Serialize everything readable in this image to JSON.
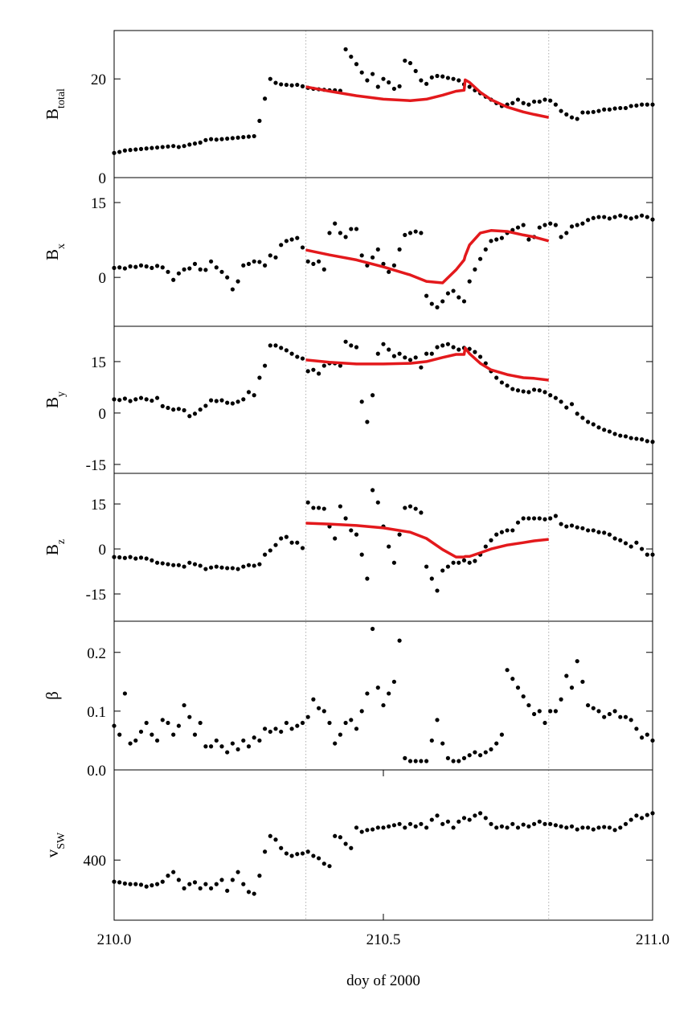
{
  "chart_data": {
    "type": "scatter",
    "xlabel": "doy of 2000",
    "xlim": [
      210.0,
      211.0
    ],
    "xticks": [
      {
        "value": 210.0,
        "label": "210.0"
      },
      210.5,
      {
        "value": 211.0,
        "label": "211.0"
      }
    ],
    "vlines": [
      210.356,
      210.807
    ],
    "x": [
      210.0,
      210.01,
      210.02,
      210.03,
      210.04,
      210.05,
      210.06,
      210.07,
      210.08,
      210.09,
      210.1,
      210.11,
      210.12,
      210.13,
      210.14,
      210.15,
      210.16,
      210.17,
      210.18,
      210.19,
      210.2,
      210.21,
      210.22,
      210.23,
      210.24,
      210.25,
      210.26,
      210.27,
      210.28,
      210.29,
      210.3,
      210.31,
      210.32,
      210.33,
      210.34,
      210.35,
      210.36,
      210.37,
      210.38,
      210.39,
      210.4,
      210.41,
      210.42,
      210.43,
      210.44,
      210.45,
      210.46,
      210.47,
      210.48,
      210.49,
      210.5,
      210.51,
      210.52,
      210.53,
      210.54,
      210.55,
      210.56,
      210.57,
      210.58,
      210.59,
      210.6,
      210.61,
      210.62,
      210.63,
      210.64,
      210.65,
      210.66,
      210.67,
      210.68,
      210.69,
      210.7,
      210.71,
      210.72,
      210.73,
      210.74,
      210.75,
      210.76,
      210.77,
      210.78,
      210.79,
      210.8,
      210.81,
      210.82,
      210.83,
      210.84,
      210.85,
      210.86,
      210.87,
      210.88,
      210.89,
      210.9,
      210.91,
      210.92,
      210.93,
      210.94,
      210.95,
      210.96,
      210.97,
      210.98,
      210.99,
      211.0
    ],
    "panels": [
      {
        "ylabel": "B",
        "ylabel_sub": "total",
        "ylim": [
          0,
          29.8
        ],
        "yticks": [
          0,
          20
        ],
        "y_inverted": false,
        "series": [
          {
            "mode": "markers",
            "color": "#000000",
            "values": [
              5,
              5.2,
              5.5,
              5.6,
              5.7,
              5.8,
              5.9,
              6,
              6.1,
              6.2,
              6.3,
              6.4,
              6.2,
              6.4,
              6.7,
              6.9,
              7.1,
              7.6,
              7.8,
              7.7,
              7.8,
              7.9,
              8,
              8.1,
              8.2,
              8.3,
              8.4,
              11.5,
              16,
              20,
              19.2,
              18.9,
              18.8,
              18.7,
              18.8,
              18.5,
              18.2,
              18,
              17.9,
              17.8,
              17.7,
              17.7,
              17.6,
              26,
              24.5,
              23,
              21.3,
              19.7,
              21,
              18.4,
              20,
              19.3,
              18,
              18.5,
              23.7,
              23.2,
              21.6,
              19.7,
              19,
              20.3,
              20.6,
              20.5,
              20.2,
              20,
              19.7,
              18.9,
              18.4,
              17.7,
              17.1,
              16.4,
              15.8,
              15.1,
              14.5,
              14.8,
              15.1,
              15.8,
              15.1,
              14.8,
              15.4,
              15.4,
              15.8,
              15.6,
              14.8,
              13.5,
              12.8,
              12.2,
              11.9,
              13.2,
              13.2,
              13.3,
              13.5,
              13.8,
              13.8,
              14,
              14.1,
              14.1,
              14.5,
              14.6,
              14.8,
              14.8,
              14.8
            ]
          },
          {
            "mode": "lines",
            "color": "#e3191c",
            "x": [
              210.356,
              210.4,
              210.45,
              210.5,
              210.55,
              210.58,
              210.61,
              210.635,
              210.65,
              210.652,
              210.66,
              210.68,
              210.7,
              210.73,
              210.76,
              210.78,
              210.807
            ],
            "values": [
              18.4,
              17.5,
              16.6,
              15.9,
              15.6,
              15.9,
              16.7,
              17.5,
              17.7,
              19.8,
              19.3,
              17.3,
              15.8,
              14.3,
              13.3,
              12.8,
              12.2
            ]
          }
        ]
      },
      {
        "ylabel": "B",
        "ylabel_sub": "x",
        "ylim": [
          -9.8,
          20
        ],
        "yticks": [
          0,
          15
        ],
        "y_inverted": false,
        "series": [
          {
            "mode": "markers",
            "color": "#000000",
            "values": [
              1.9,
              2,
              1.8,
              2.2,
              2.1,
              2.4,
              2.2,
              1.9,
              2.3,
              2,
              1.1,
              -0.5,
              0.8,
              1.6,
              1.8,
              2.7,
              1.6,
              1.5,
              3.2,
              2,
              1.1,
              0,
              -2.4,
              -0.8,
              2.4,
              2.7,
              3.2,
              3.1,
              2.4,
              4.4,
              4,
              6.5,
              7.3,
              7.6,
              7.9,
              6,
              3.2,
              2.7,
              3.2,
              1.6,
              8.9,
              10.8,
              8.9,
              8.1,
              9.7,
              9.7,
              4.4,
              2.4,
              4,
              5.6,
              2.7,
              1.1,
              2.4,
              5.6,
              8.5,
              8.9,
              9.2,
              8.9,
              -3.7,
              -5.3,
              -6,
              -4.8,
              -3.2,
              -2.7,
              -4,
              -4.8,
              -0.8,
              1.6,
              3.7,
              5.6,
              7.3,
              7.6,
              7.9,
              8.9,
              9.5,
              10,
              10.5,
              7.6,
              8.1,
              10,
              10.5,
              10.8,
              10.5,
              8.1,
              8.9,
              10.2,
              10.5,
              10.8,
              11.5,
              11.9,
              12.1,
              12.1,
              11.8,
              12.1,
              12.4,
              12.1,
              11.8,
              12.1,
              12.4,
              12.1,
              11.6
            ]
          },
          {
            "mode": "lines",
            "color": "#e3191c",
            "x": [
              210.356,
              210.4,
              210.45,
              210.5,
              210.55,
              210.58,
              210.61,
              210.635,
              210.65,
              210.652,
              210.66,
              210.68,
              210.7,
              210.73,
              210.76,
              210.78,
              210.807
            ],
            "values": [
              5.5,
              4.5,
              3.5,
              2.1,
              0.5,
              -0.8,
              -1.1,
              1.5,
              3.5,
              4.3,
              6.5,
              8.9,
              9.4,
              9.2,
              8.5,
              8.1,
              7.3
            ]
          }
        ]
      },
      {
        "ylabel": "B",
        "ylabel_sub": "y",
        "ylim": [
          -17.6,
          25.3
        ],
        "yticks": [
          -15,
          0,
          15
        ],
        "y_inverted": false,
        "series": [
          {
            "mode": "markers",
            "color": "#000000",
            "values": [
              4,
              3.8,
              4.2,
              3.5,
              4,
              4.4,
              4,
              3.6,
              4.4,
              2,
              1.5,
              1,
              1.2,
              0.8,
              -0.9,
              -0.2,
              1,
              2.1,
              3.7,
              3.5,
              3.7,
              3,
              2.8,
              3.3,
              4,
              6.1,
              5.2,
              10.3,
              13.8,
              19.7,
              19.7,
              19,
              18.3,
              17.3,
              16.4,
              15.9,
              12.2,
              12.6,
              11.5,
              13.8,
              14.5,
              14.5,
              13.8,
              20.8,
              19.7,
              19.2,
              3.3,
              -2.6,
              5.2,
              17.3,
              20.1,
              18.5,
              16.6,
              17.3,
              16.2,
              15.5,
              16.2,
              13.3,
              17.3,
              17.3,
              19.2,
              19.7,
              20.1,
              19.2,
              18.5,
              19,
              18.7,
              17.8,
              16.4,
              14.5,
              12.2,
              10.3,
              8.9,
              8,
              7,
              6.6,
              6.3,
              6.1,
              6.8,
              6.6,
              6.1,
              5.2,
              4.4,
              3.3,
              1.6,
              2.6,
              -0.2,
              -1.4,
              -2.6,
              -3.3,
              -4.2,
              -4.9,
              -5.4,
              -6.1,
              -6.6,
              -6.8,
              -7.3,
              -7.5,
              -7.7,
              -8.2,
              -8.4
            ]
          },
          {
            "mode": "lines",
            "color": "#e3191c",
            "x": [
              210.356,
              210.4,
              210.45,
              210.5,
              210.55,
              210.58,
              210.61,
              210.635,
              210.65,
              210.652,
              210.66,
              210.68,
              210.7,
              210.73,
              210.76,
              210.78,
              210.807
            ],
            "values": [
              15.5,
              14.8,
              14.3,
              14.3,
              14.5,
              15,
              16.2,
              17.1,
              17.1,
              19,
              17.3,
              14.5,
              12.6,
              11.2,
              10.3,
              10.1,
              9.6
            ]
          }
        ]
      },
      {
        "ylabel": "B",
        "ylabel_sub": "z",
        "ylim": [
          -24.1,
          25.2
        ],
        "yticks": [
          -15,
          0,
          15
        ],
        "y_inverted": false,
        "series": [
          {
            "mode": "markers",
            "color": "#000000",
            "values": [
              -2.7,
              -2.8,
              -3,
              -2.7,
              -3.2,
              -2.9,
              -3.2,
              -3.8,
              -4.6,
              -4.8,
              -5.1,
              -5.4,
              -5.4,
              -5.9,
              -4.6,
              -5.1,
              -5.6,
              -6.7,
              -6.2,
              -5.9,
              -6.2,
              -6.4,
              -6.4,
              -6.7,
              -5.9,
              -5.4,
              -5.6,
              -5.1,
              -1.9,
              -0.5,
              1.3,
              3.5,
              4,
              2.1,
              2.1,
              0.3,
              15.5,
              13.7,
              13.7,
              13.4,
              7.5,
              3.5,
              14.2,
              10.2,
              6.2,
              4.8,
              -1.9,
              -9.9,
              19.6,
              15.5,
              7.5,
              0.8,
              -4.6,
              4.8,
              13.7,
              14.2,
              13.4,
              12.1,
              -5.9,
              -9.9,
              -13.9,
              -7.2,
              -5.9,
              -4.6,
              -4.6,
              -3.8,
              -4.6,
              -4,
              -1.9,
              0.8,
              2.9,
              4.8,
              5.6,
              6.2,
              6.2,
              8.8,
              10.2,
              10.2,
              10.2,
              10.2,
              9.9,
              10.2,
              11,
              8.3,
              7.5,
              7.8,
              7.2,
              6.9,
              6.2,
              6.2,
              5.6,
              5.4,
              4.8,
              3.5,
              2.9,
              1.9,
              0.8,
              2.1,
              0,
              -1.9,
              -1.9
            ]
          },
          {
            "mode": "lines",
            "color": "#e3191c",
            "x": [
              210.356,
              210.4,
              210.45,
              210.5,
              210.55,
              210.58,
              210.61,
              210.635,
              210.65,
              210.652,
              210.66,
              210.68,
              210.7,
              210.73,
              210.76,
              210.78,
              210.807
            ],
            "values": [
              8.6,
              8.3,
              7.8,
              7,
              5.6,
              3.5,
              -0.2,
              -2.7,
              -2.7,
              -2.5,
              -2.5,
              -1.3,
              0,
              1.3,
              2.1,
              2.7,
              3.2
            ]
          }
        ]
      },
      {
        "ylabel": "β",
        "ylim": [
          0,
          0.253
        ],
        "yticks": [
          {
            "value": 0,
            "label": "0.0"
          },
          0.1,
          0.2
        ],
        "y_inverted": false,
        "series": [
          {
            "mode": "markers",
            "color": "#000000",
            "values": [
              0.075,
              0.06,
              0.13,
              0.045,
              0.05,
              0.065,
              0.08,
              0.06,
              0.05,
              0.085,
              0.08,
              0.06,
              0.075,
              0.11,
              0.09,
              0.06,
              0.08,
              0.04,
              0.04,
              0.05,
              0.04,
              0.03,
              0.045,
              0.035,
              0.05,
              0.04,
              0.055,
              0.05,
              0.07,
              0.065,
              0.07,
              0.065,
              0.08,
              0.07,
              0.075,
              0.08,
              0.09,
              0.12,
              0.105,
              0.1,
              0.08,
              0.045,
              0.06,
              0.08,
              0.085,
              0.07,
              0.1,
              0.13,
              0.24,
              0.14,
              0.11,
              0.13,
              0.15,
              0.22,
              0.02,
              0.015,
              0.015,
              0.015,
              0.015,
              0.05,
              0.085,
              0.045,
              0.02,
              0.015,
              0.015,
              0.02,
              0.025,
              0.03,
              0.025,
              0.03,
              0.035,
              0.045,
              0.06,
              0.17,
              0.155,
              0.14,
              0.125,
              0.11,
              0.095,
              0.1,
              0.08,
              0.1,
              0.1,
              0.12,
              0.16,
              0.14,
              0.185,
              0.15,
              0.11,
              0.105,
              0.1,
              0.09,
              0.095,
              0.1,
              0.09,
              0.09,
              0.085,
              0.07,
              0.055,
              0.06,
              0.05
            ]
          }
        ]
      },
      {
        "ylabel": "v",
        "ylabel_sub": "SW",
        "ylim": [
          250,
          500
        ],
        "yticks": [
          400
        ],
        "y_inverted": true,
        "series": [
          {
            "mode": "markers",
            "color": "#000000",
            "values": [
              436,
              437,
              439,
              440,
              440,
              441,
              444,
              442,
              440,
              436,
              426,
              420,
              433,
              447,
              440,
              437,
              447,
              440,
              447,
              440,
              433,
              451,
              433,
              420,
              440,
              453,
              456,
              426,
              386,
              360,
              366,
              380,
              389,
              393,
              390,
              389,
              386,
              393,
              397,
              406,
              410,
              360,
              362,
              373,
              380,
              346,
              353,
              350,
              349,
              346,
              346,
              344,
              342,
              340,
              346,
              340,
              344,
              340,
              346,
              333,
              326,
              340,
              336,
              346,
              336,
              330,
              333,
              326,
              322,
              330,
              340,
              346,
              344,
              346,
              340,
              346,
              341,
              344,
              340,
              336,
              340,
              340,
              342,
              344,
              346,
              344,
              349,
              346,
              346,
              349,
              346,
              345,
              346,
              350,
              346,
              340,
              333,
              326,
              330,
              325,
              322
            ]
          }
        ]
      }
    ]
  }
}
